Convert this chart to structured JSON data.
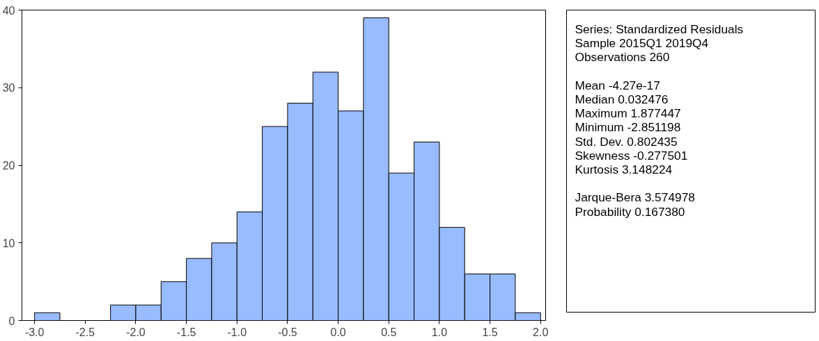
{
  "chart_data": {
    "type": "histogram",
    "bins": [
      -3.0,
      -2.75,
      -2.5,
      -2.25,
      -2.0,
      -1.75,
      -1.5,
      -1.25,
      -1.0,
      -0.75,
      -0.5,
      -0.25,
      0.0,
      0.25,
      0.5,
      0.75,
      1.0,
      1.25,
      1.5,
      1.75,
      2.0
    ],
    "values": [
      1,
      0,
      0,
      2,
      2,
      5,
      8,
      10,
      14,
      25,
      28,
      32,
      27,
      39,
      19,
      23,
      12,
      6,
      6,
      1
    ],
    "color": "#99bbff",
    "xlim": [
      -3.125,
      2.05
    ],
    "ylim": [
      0,
      40
    ],
    "xticks": [
      {
        "value": -3.0,
        "label": "-3.0"
      },
      {
        "value": -2.5,
        "label": "-2.5"
      },
      {
        "value": -2.0,
        "label": "-2.0"
      },
      {
        "value": -1.5,
        "label": "-1.5"
      },
      {
        "value": -1.0,
        "label": "-1.0"
      },
      {
        "value": -0.5,
        "label": "-0.5"
      },
      {
        "value": 0.0,
        "label": "0.0"
      },
      {
        "value": 0.5,
        "label": "0.5"
      },
      {
        "value": 1.0,
        "label": "1.0"
      },
      {
        "value": 1.5,
        "label": "1.5"
      },
      {
        "value": 2.0,
        "label": "2.0"
      }
    ],
    "yticks": [
      0,
      10,
      20,
      30,
      40
    ],
    "grid": false,
    "annotations": [
      "Series: Standardized Residuals",
      "Sample 2015Q1 2019Q4",
      "Observations 260",
      "Mean -4.27e-17",
      "Median 0.032476",
      "Maximum 1.877447",
      "Minimum -2.851198",
      "Std. Dev. 0.802435",
      "Skewness -0.277501",
      "Kurtosis 3.148224",
      "Jarque-Bera 3.574978",
      "Probability 0.167380"
    ]
  }
}
